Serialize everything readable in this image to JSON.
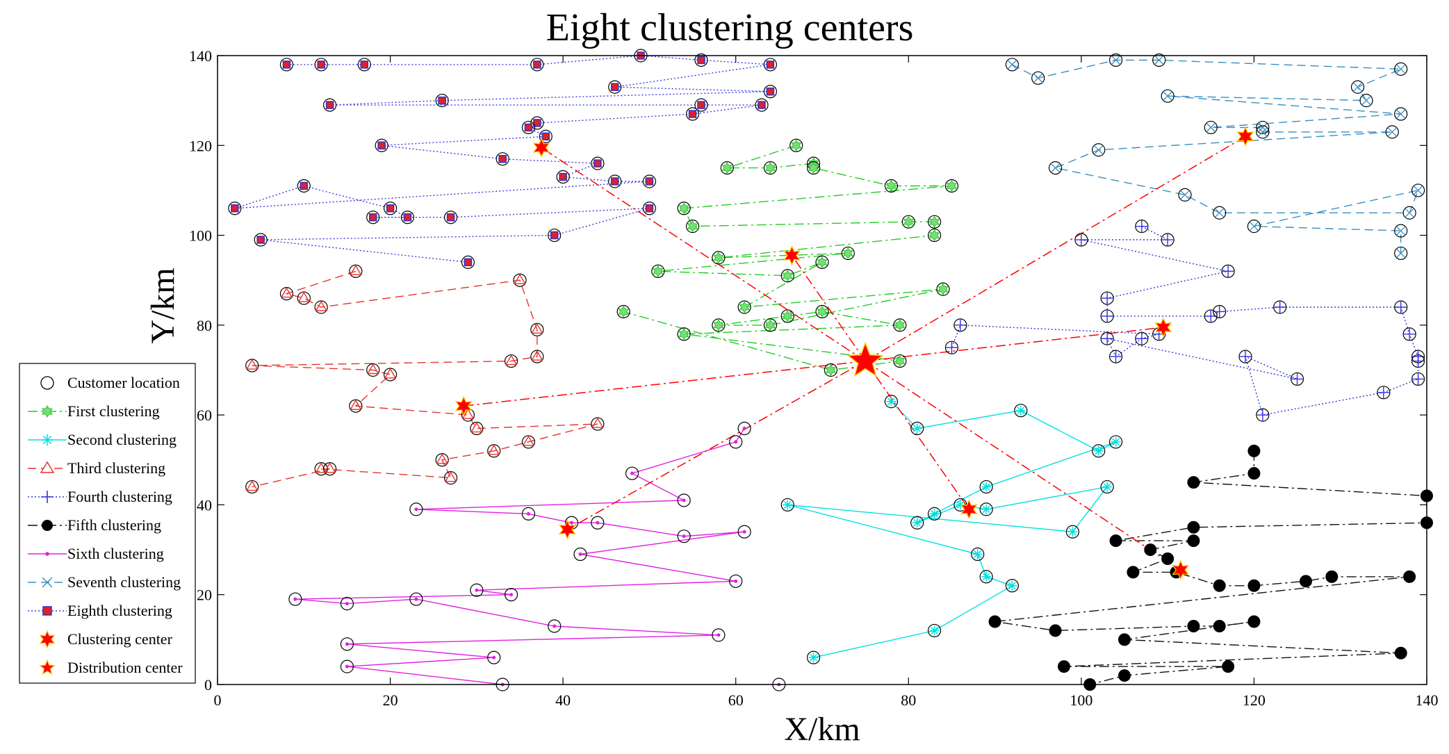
{
  "chart_data": {
    "type": "scatter",
    "title": "Eight clustering centers",
    "xlabel": "X/km",
    "ylabel": "Y/km",
    "xlim": [
      0,
      140
    ],
    "ylim": [
      0,
      140
    ],
    "xticks": [
      0,
      20,
      40,
      60,
      80,
      100,
      120,
      140
    ],
    "yticks": [
      0,
      20,
      40,
      60,
      80,
      100,
      120,
      140
    ],
    "grid": false,
    "legend_position": "lower-left-outside",
    "legend": [
      {
        "key": "customer",
        "label": "Customer location"
      },
      {
        "key": "c1",
        "label": "First clustering"
      },
      {
        "key": "c2",
        "label": "Second clustering"
      },
      {
        "key": "c3",
        "label": "Third clustering"
      },
      {
        "key": "c4",
        "label": "Fourth clustering"
      },
      {
        "key": "c5",
        "label": "Fifth clustering"
      },
      {
        "key": "c6",
        "label": "Sixth clustering"
      },
      {
        "key": "c7",
        "label": "Seventh clustering"
      },
      {
        "key": "c8",
        "label": "Eighth clustering"
      },
      {
        "key": "center",
        "label": "Clustering center"
      },
      {
        "key": "depot",
        "label": "Distribution center"
      }
    ],
    "colors": {
      "c1": "#22cc22",
      "c2": "#00e0e0",
      "c3": "#e8322a",
      "c4": "#3333dd",
      "c5": "#111111",
      "c6": "#e020e0",
      "c7": "#3a8ec0",
      "c8": "#3a3ae0",
      "marker_fill_c1": "#77dd77",
      "marker_fill_c3": "#ffffff",
      "center_fill": "#ff0000",
      "center_edge": "#ffcc00",
      "depot_line": "#ff0000"
    },
    "distribution_center": {
      "x": 75,
      "y": 72
    },
    "series": [
      {
        "name": "First clustering",
        "key": "c1",
        "marker": "hexagram",
        "center": [
          66.5,
          95.5
        ],
        "points": [
          [
            67,
            120
          ],
          [
            59,
            115
          ],
          [
            64,
            115
          ],
          [
            69,
            116
          ],
          [
            69,
            115
          ],
          [
            78,
            111
          ],
          [
            85,
            111
          ],
          [
            54,
            106
          ],
          [
            55,
            102
          ],
          [
            80,
            103
          ],
          [
            83,
            103
          ],
          [
            83,
            100
          ],
          [
            58,
            95
          ],
          [
            73,
            96
          ],
          [
            51,
            92
          ],
          [
            66,
            91
          ],
          [
            70,
            94
          ],
          [
            61,
            84
          ],
          [
            84,
            88
          ],
          [
            64,
            80
          ],
          [
            58,
            80
          ],
          [
            66,
            82
          ],
          [
            70,
            83
          ],
          [
            79,
            80
          ],
          [
            54,
            78
          ],
          [
            79,
            72
          ],
          [
            71,
            70
          ],
          [
            47,
            83
          ]
        ]
      },
      {
        "name": "Second clustering",
        "key": "c2",
        "marker": "asterisk",
        "center": [
          87,
          39
        ],
        "points": [
          [
            78,
            63
          ],
          [
            81,
            57
          ],
          [
            93,
            61
          ],
          [
            102,
            52
          ],
          [
            104,
            54
          ],
          [
            89,
            44
          ],
          [
            83,
            38
          ],
          [
            81,
            36
          ],
          [
            86,
            40
          ],
          [
            89,
            39
          ],
          [
            103,
            44
          ],
          [
            99,
            34
          ],
          [
            66,
            40
          ],
          [
            88,
            29
          ],
          [
            89,
            24
          ],
          [
            92,
            22
          ],
          [
            83,
            12
          ],
          [
            69,
            6
          ]
        ]
      },
      {
        "name": "Third clustering",
        "key": "c3",
        "marker": "triangle",
        "center": [
          28.5,
          62
        ],
        "points": [
          [
            16,
            92
          ],
          [
            8,
            87
          ],
          [
            10,
            86
          ],
          [
            12,
            84
          ],
          [
            35,
            90
          ],
          [
            37,
            79
          ],
          [
            37,
            73
          ],
          [
            34,
            72
          ],
          [
            4,
            71
          ],
          [
            18,
            70
          ],
          [
            20,
            69
          ],
          [
            16,
            62
          ],
          [
            29,
            60
          ],
          [
            30,
            57
          ],
          [
            44,
            58
          ],
          [
            36,
            54
          ],
          [
            32,
            52
          ],
          [
            26,
            50
          ],
          [
            27,
            46
          ],
          [
            12,
            48
          ],
          [
            13,
            48
          ],
          [
            4,
            44
          ]
        ]
      },
      {
        "name": "Fourth clustering",
        "key": "c4",
        "marker": "plus",
        "center": [
          109.5,
          79.5
        ],
        "points": [
          [
            107,
            102
          ],
          [
            110,
            99
          ],
          [
            100,
            99
          ],
          [
            117,
            92
          ],
          [
            103,
            86
          ],
          [
            103,
            82
          ],
          [
            115,
            82
          ],
          [
            116,
            83
          ],
          [
            123,
            84
          ],
          [
            137,
            84
          ],
          [
            138,
            78
          ],
          [
            139,
            73
          ],
          [
            139,
            72
          ],
          [
            139,
            68
          ],
          [
            135,
            65
          ],
          [
            121,
            60
          ],
          [
            119,
            73
          ],
          [
            125,
            68
          ],
          [
            103,
            77
          ],
          [
            104,
            73
          ],
          [
            107,
            77
          ],
          [
            109,
            78
          ],
          [
            86,
            80
          ],
          [
            85,
            75
          ]
        ]
      },
      {
        "name": "Fifth clustering",
        "key": "c5",
        "marker": "dot",
        "center": [
          111.5,
          25.5
        ],
        "points": [
          [
            120,
            52
          ],
          [
            120,
            47
          ],
          [
            113,
            45
          ],
          [
            140,
            42
          ],
          [
            140,
            36
          ],
          [
            113,
            35
          ],
          [
            104,
            32
          ],
          [
            113,
            32
          ],
          [
            108,
            30
          ],
          [
            110,
            28
          ],
          [
            106,
            25
          ],
          [
            111,
            25
          ],
          [
            116,
            22
          ],
          [
            120,
            22
          ],
          [
            126,
            23
          ],
          [
            129,
            24
          ],
          [
            138,
            24
          ],
          [
            90,
            14
          ],
          [
            97,
            12
          ],
          [
            113,
            13
          ],
          [
            116,
            13
          ],
          [
            120,
            14
          ],
          [
            105,
            10
          ],
          [
            137,
            7
          ],
          [
            98,
            4
          ],
          [
            117,
            4
          ],
          [
            105,
            2
          ],
          [
            101,
            0
          ]
        ]
      },
      {
        "name": "Sixth clustering",
        "key": "c6",
        "marker": "point",
        "center": [
          40.5,
          34.5
        ],
        "points": [
          [
            61,
            57
          ],
          [
            60,
            54
          ],
          [
            48,
            47
          ],
          [
            54,
            41
          ],
          [
            23,
            39
          ],
          [
            36,
            38
          ],
          [
            41,
            36
          ],
          [
            44,
            36
          ],
          [
            54,
            33
          ],
          [
            61,
            34
          ],
          [
            42,
            29
          ],
          [
            60,
            23
          ],
          [
            30,
            21
          ],
          [
            34,
            20
          ],
          [
            9,
            19
          ],
          [
            15,
            18
          ],
          [
            23,
            19
          ],
          [
            39,
            13
          ],
          [
            58,
            11
          ],
          [
            15,
            9
          ],
          [
            32,
            6
          ],
          [
            15,
            4
          ],
          [
            33,
            0
          ],
          [
            65,
            0
          ]
        ]
      },
      {
        "name": "Seventh clustering",
        "key": "c7",
        "marker": "x",
        "center": [
          119,
          122
        ],
        "points": [
          [
            92,
            138
          ],
          [
            95,
            135
          ],
          [
            104,
            139
          ],
          [
            109,
            139
          ],
          [
            137,
            137
          ],
          [
            132,
            133
          ],
          [
            133,
            130
          ],
          [
            110,
            131
          ],
          [
            137,
            127
          ],
          [
            115,
            124
          ],
          [
            121,
            124
          ],
          [
            121,
            123
          ],
          [
            136,
            123
          ],
          [
            102,
            119
          ],
          [
            97,
            115
          ],
          [
            112,
            109
          ],
          [
            116,
            105
          ],
          [
            138,
            105
          ],
          [
            139,
            110
          ],
          [
            120,
            102
          ],
          [
            137,
            101
          ],
          [
            137,
            96
          ]
        ]
      },
      {
        "name": "Eighth clustering",
        "key": "c8",
        "marker": "square",
        "center": [
          37.5,
          119.5
        ],
        "points": [
          [
            8,
            138
          ],
          [
            12,
            138
          ],
          [
            17,
            138
          ],
          [
            37,
            138
          ],
          [
            49,
            140
          ],
          [
            56,
            139
          ],
          [
            64,
            138
          ],
          [
            46,
            133
          ],
          [
            64,
            132
          ],
          [
            26,
            130
          ],
          [
            13,
            129
          ],
          [
            56,
            129
          ],
          [
            63,
            129
          ],
          [
            55,
            127
          ],
          [
            37,
            125
          ],
          [
            36,
            124
          ],
          [
            38,
            122
          ],
          [
            19,
            120
          ],
          [
            33,
            117
          ],
          [
            44,
            116
          ],
          [
            40,
            113
          ],
          [
            46,
            112
          ],
          [
            50,
            112
          ],
          [
            2,
            106
          ],
          [
            10,
            111
          ],
          [
            20,
            106
          ],
          [
            22,
            104
          ],
          [
            18,
            104
          ],
          [
            27,
            104
          ],
          [
            50,
            106
          ],
          [
            39,
            100
          ],
          [
            5,
            99
          ],
          [
            29,
            94
          ]
        ]
      }
    ]
  }
}
